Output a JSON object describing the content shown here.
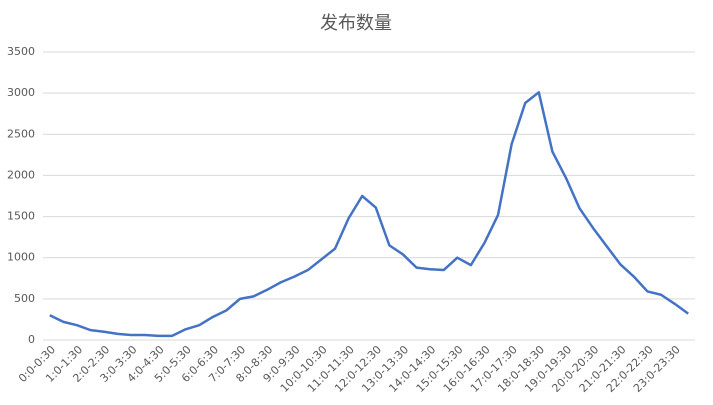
{
  "chart_data": {
    "type": "line",
    "title": "发布数量",
    "categories": [
      "0:0-0:30",
      null,
      "1:0-1:30",
      null,
      "2:0-2:30",
      null,
      "3:0-3:30",
      null,
      "4:0-4:30",
      null,
      "5:0-5:30",
      null,
      "6:0-6:30",
      null,
      "7:0-7:30",
      null,
      "8:0-8:30",
      null,
      "9:0-9:30",
      null,
      "10:0-10:30",
      null,
      "11:0-11:30",
      null,
      "12:0-12:30",
      null,
      "13:0-13:30",
      null,
      "14:0-14:30",
      null,
      "15:0-15:30",
      null,
      "16:0-16:30",
      null,
      "17:0-17:30",
      null,
      "18:0-18:30",
      null,
      "19:0-19:30",
      null,
      "20:0-20:30",
      null,
      "21:0-21:30",
      null,
      "22:0-22:30",
      null,
      "23:0-23:30",
      null
    ],
    "values": [
      300,
      220,
      180,
      120,
      100,
      75,
      60,
      60,
      50,
      50,
      130,
      180,
      280,
      360,
      500,
      530,
      610,
      700,
      770,
      850,
      980,
      1110,
      1480,
      1750,
      1610,
      1150,
      1040,
      880,
      860,
      850,
      1000,
      910,
      1180,
      1520,
      2380,
      2880,
      3010,
      2290,
      1970,
      1600,
      1360,
      1140,
      920,
      770,
      590,
      550,
      440,
      320
    ],
    "color": "#4472c4",
    "ylim": [
      0,
      3500
    ],
    "yticks": [
      0,
      500,
      1000,
      1500,
      2000,
      2500,
      3000,
      3500
    ],
    "grid": true
  }
}
